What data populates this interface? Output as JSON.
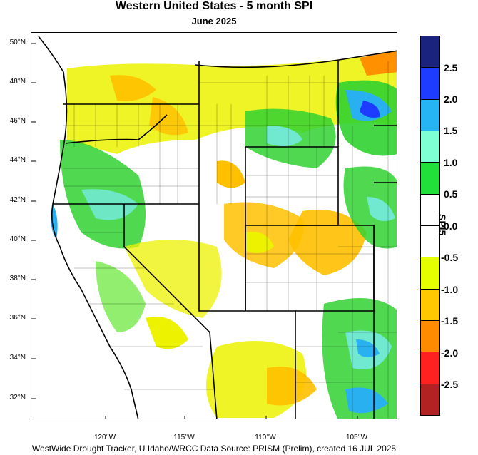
{
  "title": "Western United States - 5 month SPI",
  "subtitle": "June 2025",
  "footer": "WestWide Drought Tracker, U Idaho/WRCC Data Source: PRISM (Prelim), created 16 JUL 2025",
  "lat_labels": [
    "50°N",
    "48°N",
    "46°N",
    "44°N",
    "42°N",
    "40°N",
    "38°N",
    "36°N",
    "34°N",
    "32°N"
  ],
  "lon_labels": [
    "120°W",
    "115°W",
    "110°W",
    "105°W"
  ],
  "colorbar": {
    "title": "SPI5",
    "labels": [
      "2.5",
      "2.0",
      "1.5",
      "1.0",
      "0.5",
      "0.0",
      "-0.5",
      "-1.0",
      "-1.5",
      "-2.0",
      "-2.5"
    ],
    "colors": [
      "#1a237e",
      "#1e3cff",
      "#27b4f5",
      "#7fffd4",
      "#22e03a",
      "#ffffff",
      "#ffffff",
      "#e6ff00",
      "#ffc800",
      "#ff8c00",
      "#ff2020",
      "#b22222"
    ]
  },
  "palette": {
    "green": "#31d231",
    "light_green": "#86ec5e",
    "cyan": "#71e8d0",
    "blue": "#28b0f0",
    "dark_blue": "#1e3cff",
    "yellow": "#e6f000",
    "orange": "#ffc000",
    "dark_orange": "#ff9000"
  }
}
